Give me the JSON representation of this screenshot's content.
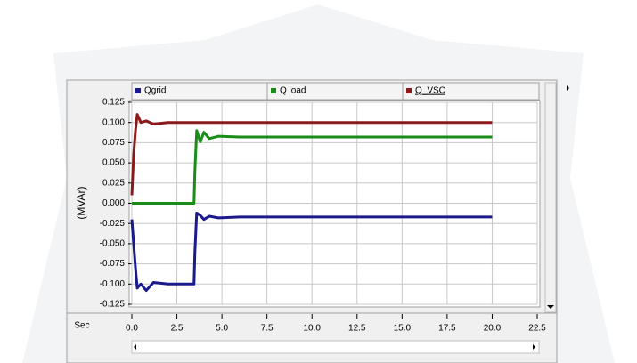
{
  "chart_data": {
    "type": "line",
    "xlabel": "Sec",
    "ylabel": "(MVAr)",
    "x": [
      0,
      0.1,
      0.2,
      0.3,
      0.5,
      0.8,
      1.2,
      2,
      3,
      3.45,
      3.5,
      3.6,
      3.8,
      4.0,
      4.3,
      4.8,
      6,
      10,
      15,
      20
    ],
    "series": [
      {
        "name": "Qgrid",
        "color": "#1a1a8c",
        "values": [
          -0.02,
          -0.05,
          -0.08,
          -0.105,
          -0.1,
          -0.108,
          -0.098,
          -0.1,
          -0.1,
          -0.1,
          -0.06,
          -0.012,
          -0.015,
          -0.02,
          -0.016,
          -0.018,
          -0.017,
          -0.017,
          -0.017,
          -0.017
        ]
      },
      {
        "name": "Q load",
        "color": "#1a8c1a",
        "values": [
          0,
          0,
          0,
          0,
          0,
          0,
          0,
          0,
          0,
          0,
          0.04,
          0.09,
          0.076,
          0.088,
          0.08,
          0.083,
          0.082,
          0.082,
          0.082,
          0.082
        ]
      },
      {
        "name": "Q_VSC",
        "color": "#8c1a1a",
        "values": [
          0.01,
          0.06,
          0.09,
          0.11,
          0.1,
          0.102,
          0.098,
          0.1,
          0.1,
          0.1,
          0.1,
          0.1,
          0.1,
          0.1,
          0.1,
          0.1,
          0.1,
          0.1,
          0.1,
          0.1
        ]
      }
    ],
    "xlim": [
      0,
      22.5
    ],
    "xticks": [
      {
        "value": 0,
        "label": "0.0"
      },
      2.5,
      {
        "value": 5,
        "label": "5.0"
      },
      7.5,
      {
        "value": 10,
        "label": "10.0"
      },
      12.5,
      {
        "value": 15,
        "label": "15.0"
      },
      17.5,
      {
        "value": 20,
        "label": "20.0"
      },
      22.5
    ],
    "ylim": [
      -0.125,
      0.125
    ],
    "yticks": [
      {
        "value": 0.125,
        "label": "0.125"
      },
      {
        "value": 0.1,
        "label": "0.100"
      },
      {
        "value": 0.075,
        "label": "0.075"
      },
      {
        "value": 0.05,
        "label": "0.050"
      },
      {
        "value": 0.025,
        "label": "0.025"
      },
      {
        "value": 0,
        "label": "0.000"
      },
      {
        "value": -0.025,
        "label": "-0.025"
      },
      {
        "value": -0.05,
        "label": "-0.050"
      },
      {
        "value": -0.075,
        "label": "-0.075"
      },
      {
        "value": -0.1,
        "label": "-0.100"
      },
      {
        "value": -0.125,
        "label": "-0.125"
      }
    ],
    "grid": true
  }
}
